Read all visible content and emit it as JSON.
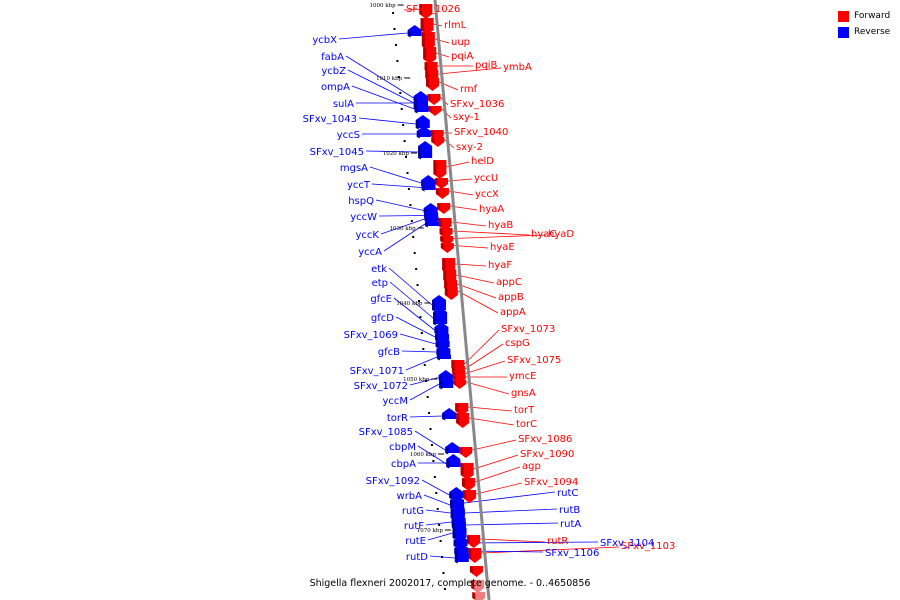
{
  "legend": {
    "items": [
      {
        "label": "Forward",
        "color": "#ff0000"
      },
      {
        "label": "Reverse",
        "color": "#0000ff"
      }
    ]
  },
  "caption": "Shigella flexneri 2002017, complete genome. - 0..4650856",
  "colors": {
    "forward": "#ff0000",
    "reverse": "#0000ff",
    "axis": "#808080"
  },
  "ticks": [
    "1000 kbp",
    "1010 kbp",
    "1020 kbp",
    "1030 kbp",
    "1040 kbp",
    "1050 kbp",
    "1060 kbp",
    "1070 kbp"
  ],
  "forward_genes": [
    "SFxv_1026",
    "rlmL",
    "uup",
    "pqiA",
    "pqiB",
    "ymbA",
    "rmf",
    "SFxv_1036",
    "sxy-1",
    "SFxv_1040",
    "sxy-2",
    "helD",
    "yccU",
    "yccX",
    "hyaA",
    "hyaB",
    "hyaC",
    "hyaD",
    "hyaE",
    "hyaF",
    "appC",
    "appB",
    "appA",
    "SFxv_1073",
    "cspG",
    "SFxv_1075",
    "ymcE",
    "gnsA",
    "torT",
    "torC",
    "SFxv_1086",
    "SFxv_1090",
    "agp",
    "SFxv_1094",
    "rutR",
    "SFxv_1103"
  ],
  "reverse_genes": [
    "ycbX",
    "fabA",
    "ycbZ",
    "ompA",
    "sulA",
    "SFxv_1043",
    "yccS",
    "SFxv_1045",
    "mgsA",
    "yccT",
    "hspQ",
    "yccW",
    "yccK",
    "yccA",
    "etk",
    "etp",
    "gfcE",
    "gfcD",
    "SFxv_1069",
    "gfcB",
    "SFxv_1071",
    "SFxv_1072",
    "yccM",
    "torR",
    "SFxv_1085",
    "cbpM",
    "cbpA",
    "SFxv_1092",
    "wrbA",
    "rutG",
    "rutF",
    "rutE",
    "rutD",
    "rutC",
    "rutB",
    "rutA",
    "SFxv_1104",
    "SFxv_1106"
  ]
}
